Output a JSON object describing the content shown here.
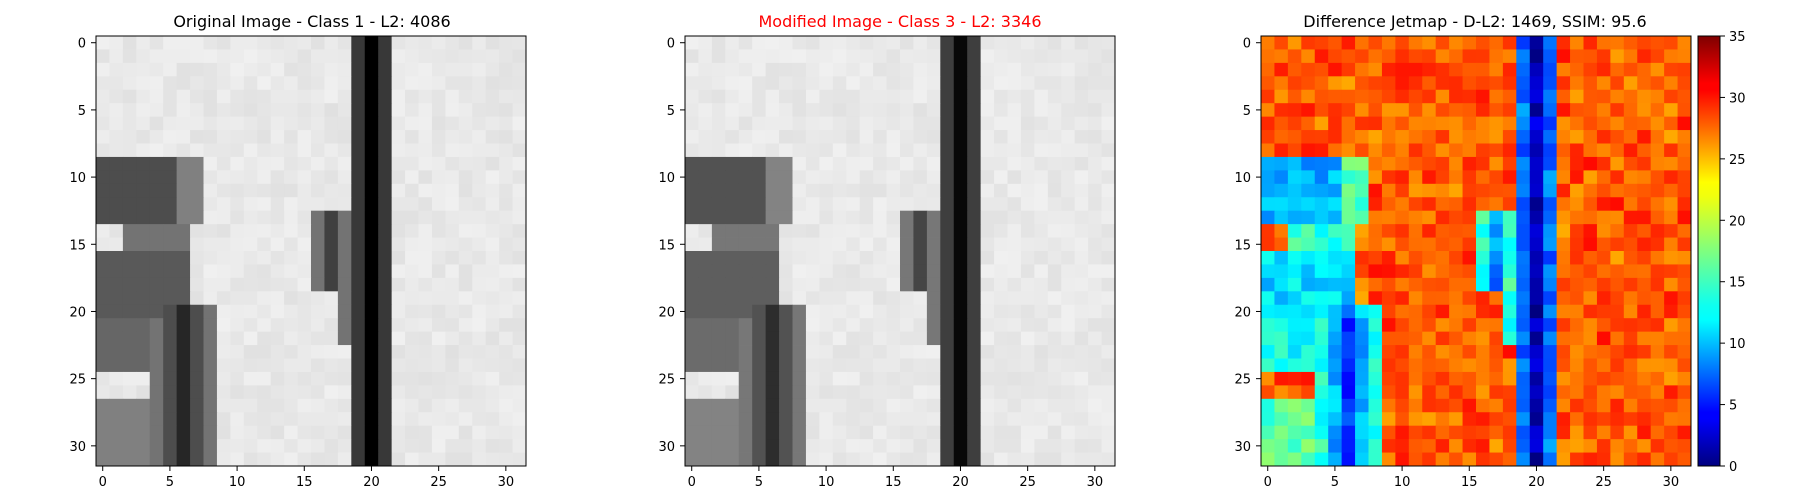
{
  "chart_data": [
    {
      "type": "heatmap",
      "title": "Original Image - Class 1 - L2: 4086",
      "title_color": "#000000",
      "colormap": "gray",
      "xticks": [
        "0",
        "5",
        "10",
        "15",
        "20",
        "25",
        "30"
      ],
      "yticks": [
        "0",
        "5",
        "10",
        "15",
        "20",
        "25",
        "30"
      ],
      "xlim": [
        -0.5,
        31.5
      ],
      "ylim": [
        31.5,
        -0.5
      ],
      "grid_size": [
        32,
        32
      ],
      "value_range": [
        0,
        255
      ]
    },
    {
      "type": "heatmap",
      "title": "Modified Image - Class 3 - L2: 3346",
      "title_color": "#ff0000",
      "colormap": "gray",
      "xticks": [
        "0",
        "5",
        "10",
        "15",
        "20",
        "25",
        "30"
      ],
      "yticks": [
        "0",
        "5",
        "10",
        "15",
        "20",
        "25",
        "30"
      ],
      "xlim": [
        -0.5,
        31.5
      ],
      "ylim": [
        31.5,
        -0.5
      ],
      "grid_size": [
        32,
        32
      ],
      "value_range": [
        0,
        255
      ]
    },
    {
      "type": "heatmap",
      "title": "Difference Jetmap - D-L2: 1469, SSIM: 95.6",
      "title_color": "#000000",
      "colormap": "jet",
      "xticks": [
        "0",
        "5",
        "10",
        "15",
        "20",
        "25",
        "30"
      ],
      "yticks": [
        "0",
        "5",
        "10",
        "15",
        "20",
        "25",
        "30"
      ],
      "xlim": [
        -0.5,
        31.5
      ],
      "ylim": [
        31.5,
        -0.5
      ],
      "grid_size": [
        32,
        32
      ],
      "colorbar": {
        "range": [
          0,
          35
        ],
        "ticks": [
          "0",
          "5",
          "10",
          "15",
          "20",
          "25",
          "30",
          "35"
        ]
      }
    }
  ]
}
